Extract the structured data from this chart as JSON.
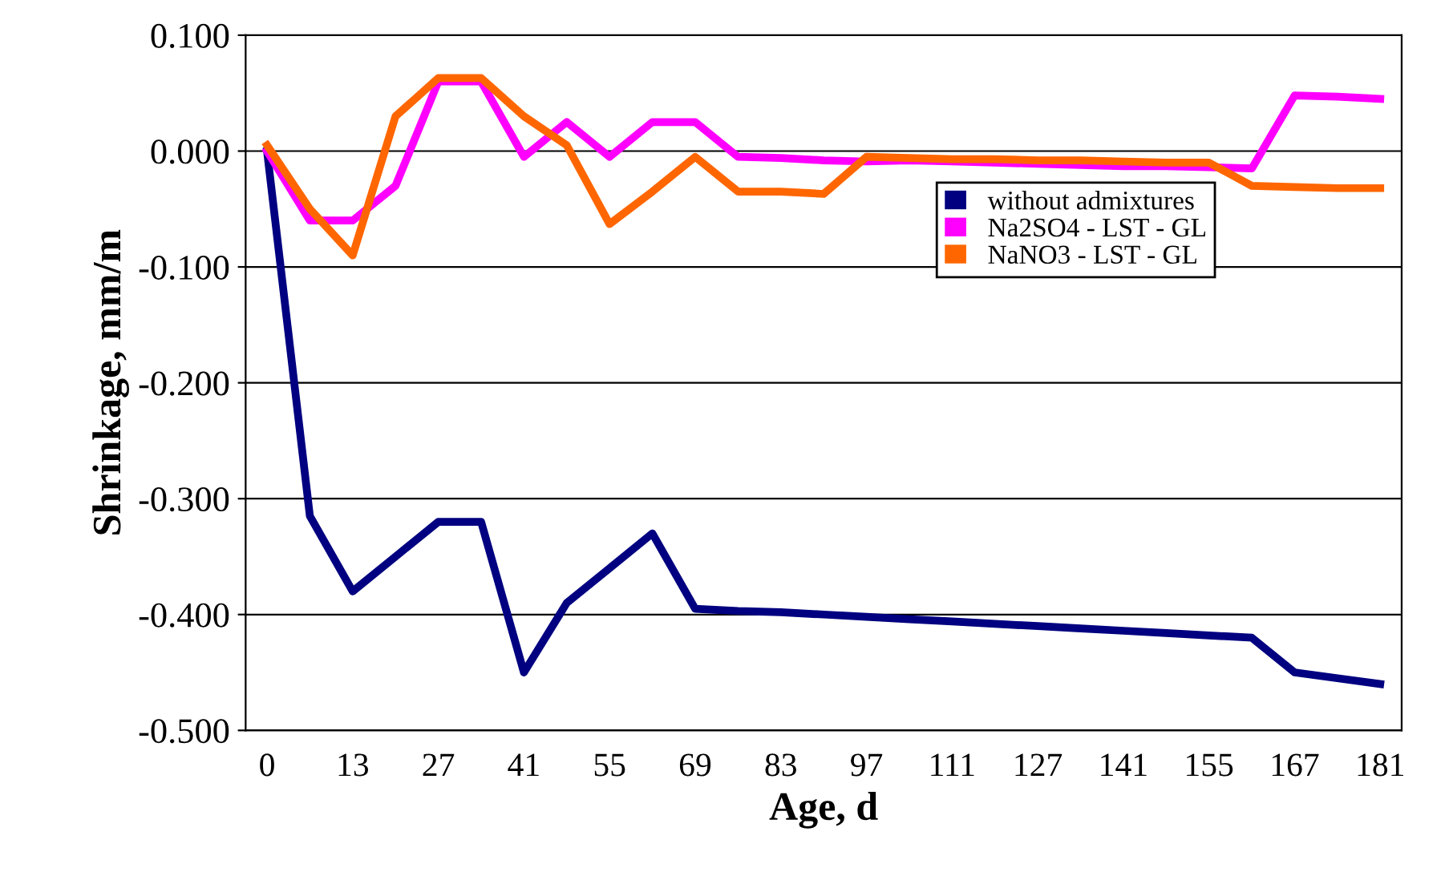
{
  "chart_data": {
    "type": "line",
    "xlabel": "Age, d",
    "ylabel": "Shrinkage, mm/m",
    "categories": [
      "0",
      null,
      "13",
      null,
      "27",
      null,
      "41",
      null,
      "55",
      null,
      "69",
      null,
      "83",
      null,
      "97",
      null,
      "111",
      null,
      "127",
      null,
      "141",
      null,
      "155",
      null,
      "167",
      null,
      "181"
    ],
    "series": [
      {
        "name": "without admixtures",
        "color": "#000080",
        "values": [
          0,
          -0.315,
          -0.38,
          -0.35,
          -0.32,
          -0.32,
          -0.45,
          -0.39,
          -0.36,
          -0.33,
          -0.395,
          -0.397,
          -0.398,
          -0.4,
          -0.402,
          -0.404,
          -0.406,
          -0.408,
          -0.41,
          -0.412,
          -0.414,
          -0.416,
          -0.418,
          -0.42,
          -0.45,
          -0.455,
          -0.46
        ]
      },
      {
        "name": "Na2SO4 - LST - GL",
        "color": "#ff00ff",
        "values": [
          0,
          -0.06,
          -0.06,
          -0.03,
          0.06,
          0.06,
          -0.005,
          0.025,
          -0.005,
          0.025,
          0.025,
          -0.005,
          -0.006,
          -0.008,
          -0.009,
          -0.008,
          -0.009,
          -0.01,
          -0.011,
          -0.012,
          -0.013,
          -0.013,
          -0.014,
          -0.015,
          0.048,
          0.047,
          0.045
        ]
      },
      {
        "name": "NaNO3 - LST - GL",
        "color": "#ff6600",
        "values": [
          0.005,
          -0.05,
          -0.09,
          0.03,
          0.063,
          0.063,
          0.03,
          0.005,
          -0.063,
          -0.035,
          -0.005,
          -0.035,
          -0.035,
          -0.037,
          -0.005,
          -0.006,
          -0.007,
          -0.007,
          -0.008,
          -0.008,
          -0.009,
          -0.01,
          -0.01,
          -0.03,
          -0.031,
          -0.032,
          -0.032
        ]
      }
    ],
    "ylim": [
      -0.5,
      0.1
    ],
    "yticks": [
      {
        "value": -0.5,
        "label": "-0.500"
      },
      {
        "value": -0.4,
        "label": "-0.400"
      },
      {
        "value": -0.3,
        "label": "-0.300"
      },
      {
        "value": -0.2,
        "label": "-0.200"
      },
      {
        "value": -0.1,
        "label": "-0.100"
      },
      {
        "value": 0,
        "label": "0.000"
      },
      {
        "value": 0.1,
        "label": "0.100"
      }
    ],
    "grid": "y",
    "legend": "right",
    "marker": "none",
    "line_style": "solid"
  }
}
